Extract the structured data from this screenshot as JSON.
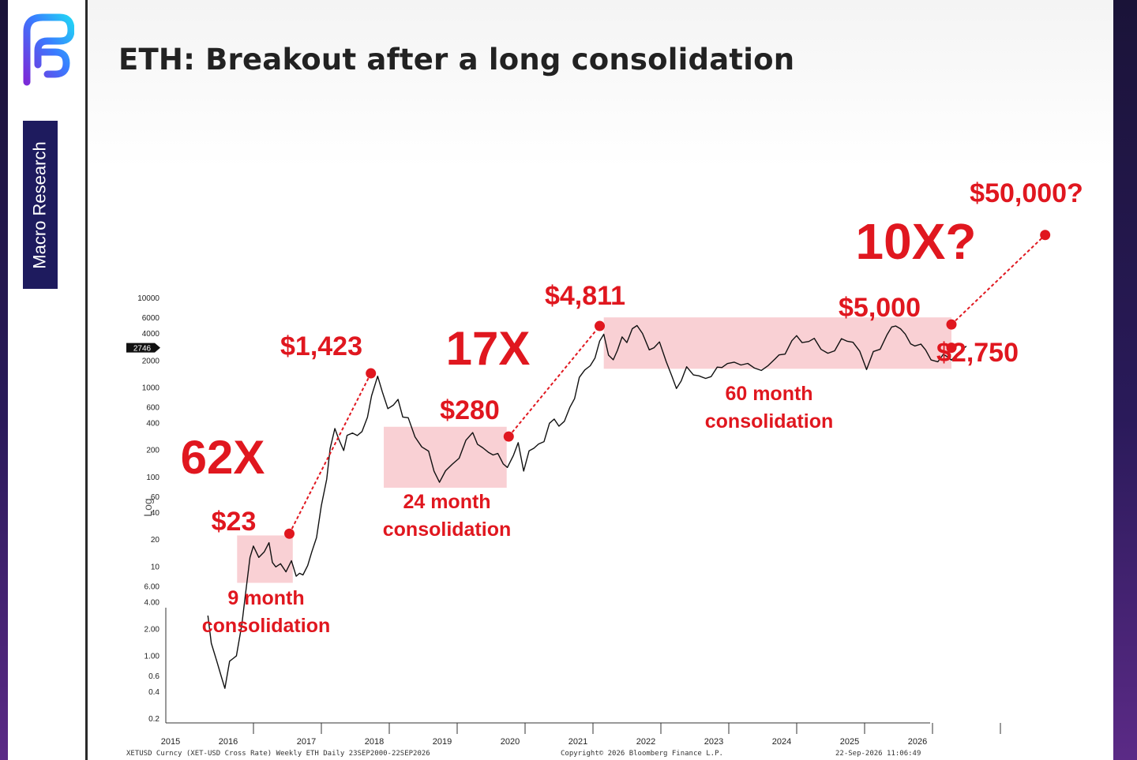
{
  "slide": {
    "title": "ETH: Breakout after a long consolidation",
    "brand_label": "Macro Research"
  },
  "colors": {
    "accent": "#e0171f",
    "band": "#f8c8cc",
    "brand": "#1e1b5e"
  },
  "chart_data": {
    "type": "line",
    "title": "ETH: Breakout after a long consolidation",
    "yscale": "log",
    "ylabel": "Log",
    "ylim": [
      0.2,
      10000
    ],
    "y_ticks": [
      "10000",
      "6000",
      "4000",
      "2000",
      "1000",
      "600",
      "400",
      "200",
      "100",
      "60",
      "40",
      "20",
      "10",
      "6.00",
      "4.00",
      "2.00",
      "1.00",
      "0.6",
      "0.4",
      "0.2"
    ],
    "y_tick_values": [
      10000,
      6000,
      4000,
      2000,
      1000,
      600,
      400,
      200,
      100,
      60,
      40,
      20,
      10,
      6,
      4,
      2,
      1,
      0.6,
      0.4,
      0.2
    ],
    "current_price_label": "2746",
    "current_price": 2746,
    "x_ticks": [
      "2015",
      "2016",
      "2017",
      "2018",
      "2019",
      "2020",
      "2021",
      "2022",
      "2023",
      "2024",
      "2025",
      "2026"
    ],
    "series": [
      {
        "values": [
          [
            2015.55,
            2.8
          ],
          [
            2015.6,
            1.4
          ],
          [
            2015.68,
            0.9
          ],
          [
            2015.75,
            0.6
          ],
          [
            2015.8,
            0.45
          ],
          [
            2015.87,
            0.9
          ],
          [
            2015.92,
            0.95
          ],
          [
            2015.97,
            1.0
          ],
          [
            2016.05,
            2.2
          ],
          [
            2016.1,
            4.5
          ],
          [
            2016.17,
            12
          ],
          [
            2016.22,
            16
          ],
          [
            2016.3,
            12
          ],
          [
            2016.38,
            14
          ],
          [
            2016.45,
            18
          ],
          [
            2016.5,
            11
          ],
          [
            2016.55,
            10
          ],
          [
            2016.62,
            11
          ],
          [
            2016.7,
            9
          ],
          [
            2016.78,
            12
          ],
          [
            2016.85,
            8
          ],
          [
            2016.9,
            8.5
          ],
          [
            2016.95,
            8
          ],
          [
            2017.02,
            10
          ],
          [
            2017.08,
            14
          ],
          [
            2017.15,
            20
          ],
          [
            2017.22,
            45
          ],
          [
            2017.3,
            90
          ],
          [
            2017.35,
            200
          ],
          [
            2017.42,
            340
          ],
          [
            2017.48,
            260
          ],
          [
            2017.55,
            200
          ],
          [
            2017.6,
            300
          ],
          [
            2017.68,
            320
          ],
          [
            2017.75,
            300
          ],
          [
            2017.82,
            330
          ],
          [
            2017.9,
            470
          ],
          [
            2017.96,
            800
          ],
          [
            2018.05,
            1300
          ],
          [
            2018.12,
            850
          ],
          [
            2018.2,
            550
          ],
          [
            2018.28,
            600
          ],
          [
            2018.35,
            700
          ],
          [
            2018.42,
            450
          ],
          [
            2018.5,
            450
          ],
          [
            2018.6,
            280
          ],
          [
            2018.7,
            220
          ],
          [
            2018.8,
            200
          ],
          [
            2018.88,
            120
          ],
          [
            2018.96,
            90
          ],
          [
            2019.05,
            120
          ],
          [
            2019.15,
            140
          ],
          [
            2019.25,
            160
          ],
          [
            2019.35,
            250
          ],
          [
            2019.45,
            300
          ],
          [
            2019.52,
            220
          ],
          [
            2019.6,
            200
          ],
          [
            2019.68,
            180
          ],
          [
            2019.75,
            170
          ],
          [
            2019.82,
            180
          ],
          [
            2019.9,
            140
          ],
          [
            2019.96,
            130
          ],
          [
            2020.05,
            180
          ],
          [
            2020.12,
            250
          ],
          [
            2020.2,
            120
          ],
          [
            2020.28,
            200
          ],
          [
            2020.35,
            210
          ],
          [
            2020.42,
            230
          ],
          [
            2020.5,
            240
          ],
          [
            2020.58,
            380
          ],
          [
            2020.65,
            420
          ],
          [
            2020.72,
            350
          ],
          [
            2020.8,
            400
          ],
          [
            2020.88,
            580
          ],
          [
            2020.95,
            740
          ],
          [
            2021.02,
            1300
          ],
          [
            2021.1,
            1600
          ],
          [
            2021.18,
            1800
          ],
          [
            2021.25,
            2200
          ],
          [
            2021.32,
            3400
          ],
          [
            2021.38,
            4000
          ],
          [
            2021.45,
            2300
          ],
          [
            2021.52,
            2000
          ],
          [
            2021.58,
            2500
          ],
          [
            2021.65,
            3500
          ],
          [
            2021.72,
            3000
          ],
          [
            2021.8,
            4300
          ],
          [
            2021.87,
            4700
          ],
          [
            2021.95,
            3900
          ],
          [
            2022.05,
            2600
          ],
          [
            2022.12,
            2800
          ],
          [
            2022.2,
            3300
          ],
          [
            2022.3,
            2000
          ],
          [
            2022.38,
            1400
          ],
          [
            2022.45,
            1000
          ],
          [
            2022.52,
            1200
          ],
          [
            2022.6,
            1700
          ],
          [
            2022.7,
            1350
          ],
          [
            2022.78,
            1300
          ],
          [
            2022.88,
            1200
          ],
          [
            2022.96,
            1250
          ],
          [
            2023.05,
            1600
          ],
          [
            2023.12,
            1600
          ],
          [
            2023.2,
            1800
          ],
          [
            2023.3,
            1900
          ],
          [
            2023.4,
            1800
          ],
          [
            2023.5,
            1900
          ],
          [
            2023.6,
            1700
          ],
          [
            2023.7,
            1600
          ],
          [
            2023.8,
            1800
          ],
          [
            2023.9,
            2100
          ],
          [
            2023.96,
            2300
          ],
          [
            2024.05,
            2300
          ],
          [
            2024.15,
            3200
          ],
          [
            2024.22,
            3600
          ],
          [
            2024.3,
            3000
          ],
          [
            2024.4,
            3100
          ],
          [
            2024.48,
            3400
          ],
          [
            2024.58,
            2600
          ],
          [
            2024.68,
            2400
          ],
          [
            2024.78,
            2600
          ],
          [
            2024.88,
            3600
          ],
          [
            2024.96,
            3400
          ],
          [
            2025.05,
            3300
          ],
          [
            2025.15,
            2600
          ],
          [
            2025.25,
            1600
          ],
          [
            2025.35,
            2500
          ],
          [
            2025.45,
            2600
          ],
          [
            2025.55,
            3700
          ],
          [
            2025.62,
            4500
          ],
          [
            2025.68,
            4600
          ],
          [
            2025.75,
            4300
          ],
          [
            2025.82,
            3800
          ],
          [
            2025.9,
            3000
          ],
          [
            2025.96,
            2900
          ],
          [
            2026.05,
            3100
          ],
          [
            2026.12,
            2700
          ],
          [
            2026.2,
            2100
          ],
          [
            2026.3,
            2000
          ],
          [
            2026.38,
            2400
          ],
          [
            2026.45,
            2200
          ],
          [
            2026.5,
            2000
          ],
          [
            2026.58,
            2300
          ],
          [
            2026.65,
            2500
          ],
          [
            2026.72,
            2746
          ]
        ]
      }
    ],
    "consolidations": [
      {
        "label": "9 month consolidation",
        "x": [
          2015.98,
          2016.8
        ],
        "y": [
          6.5,
          22
        ]
      },
      {
        "label": "24 month consolidation",
        "x": [
          2018.14,
          2019.95
        ],
        "y": [
          75,
          360
        ]
      },
      {
        "label": "60 month consolidation",
        "x": [
          2021.38,
          2026.5
        ],
        "y": [
          1600,
          6000
        ]
      }
    ],
    "price_points": [
      {
        "label": "$23",
        "x": 2016.75,
        "y": 23
      },
      {
        "label": "$1,423",
        "x": 2017.95,
        "y": 1423
      },
      {
        "label": "$280",
        "x": 2019.98,
        "y": 280
      },
      {
        "label": "$4,811",
        "x": 2021.32,
        "y": 4811
      },
      {
        "label": "$5,000",
        "x": 2026.5,
        "y": 5000
      },
      {
        "label": "$2,750",
        "x": 2026.5,
        "y": 2750
      },
      {
        "label": "$50,000?",
        "x": 2027.88,
        "y": 50000
      }
    ],
    "moves": [
      {
        "label": "62X",
        "from": [
          2016.75,
          23
        ],
        "to": [
          2017.95,
          1423
        ]
      },
      {
        "label": "17X",
        "from": [
          2019.98,
          280
        ],
        "to": [
          2021.32,
          4811
        ]
      },
      {
        "label": "10X?",
        "from": [
          2026.5,
          5000
        ],
        "to": [
          2027.88,
          50000
        ]
      }
    ],
    "footer": {
      "source": "XETUSD Curncy (XET-USD Cross Rate) Weekly ETH Daily 23SEP2000-22SEP2026",
      "copyright": "Copyright© 2026 Bloomberg Finance L.P.",
      "timestamp": "22-Sep-2026 11:06:49"
    }
  }
}
